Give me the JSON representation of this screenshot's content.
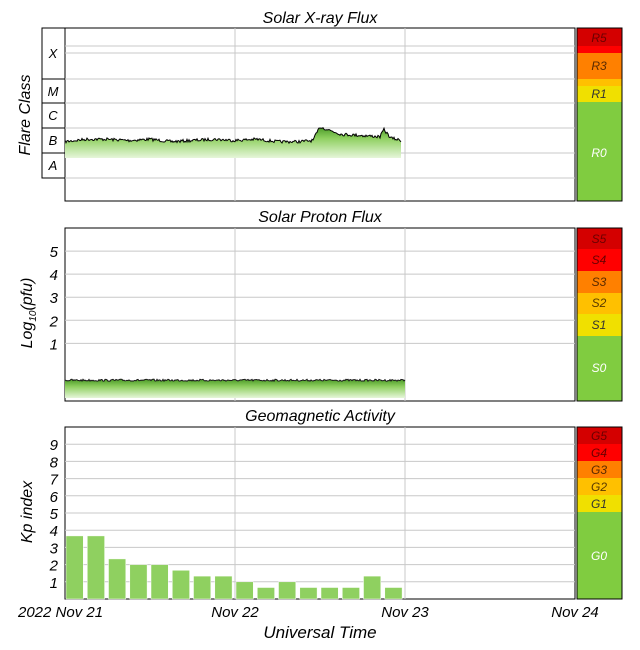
{
  "chart_data": [
    {
      "type": "area",
      "title": "Solar X-ray Flux",
      "ylabel": "Flare Class",
      "y_scale": "log",
      "ylim_log10": [
        -9,
        -2
      ],
      "flare_classes": [
        "X",
        "M",
        "C",
        "B",
        "A"
      ],
      "scale_labels": [
        "R5",
        "R3",
        "R1",
        "R0"
      ],
      "x": [
        "2022-11-21T00:00",
        "2022-11-21T03:00",
        "2022-11-21T06:00",
        "2022-11-21T09:00",
        "2022-11-21T12:00",
        "2022-11-21T15:00",
        "2022-11-21T18:00",
        "2022-11-21T21:00",
        "2022-11-22T00:00",
        "2022-11-22T03:00",
        "2022-11-22T06:00",
        "2022-11-22T09:00",
        "2022-11-22T11:00",
        "2022-11-22T12:00",
        "2022-11-22T15:00",
        "2022-11-22T18:00",
        "2022-11-22T20:30",
        "2022-11-22T21:00",
        "2022-11-22T22:00",
        "2022-11-22T23:30"
      ],
      "values_log10": [
        -6.6,
        -6.5,
        -6.5,
        -6.55,
        -6.5,
        -6.6,
        -6.55,
        -6.5,
        -6.55,
        -6.5,
        -6.6,
        -6.6,
        -6.55,
        -6.0,
        -6.3,
        -6.35,
        -6.4,
        -6.1,
        -6.45,
        -6.55
      ]
    },
    {
      "type": "area",
      "title": "Solar Proton Flux",
      "ylabel": "Log10(pfu)",
      "ylim": [
        -1.5,
        6
      ],
      "yticks": [
        1,
        2,
        3,
        4,
        5
      ],
      "scale_labels": [
        "S5",
        "S4",
        "S3",
        "S2",
        "S1",
        "S0"
      ],
      "x": [
        "2022-11-21T00:00",
        "2022-11-23T00:00"
      ],
      "values": [
        -0.6,
        -0.6
      ]
    },
    {
      "type": "bar",
      "title": "Geomagnetic Activity",
      "ylabel": "Kp index",
      "ylim": [
        0,
        10
      ],
      "yticks": [
        1,
        2,
        3,
        4,
        5,
        6,
        7,
        8,
        9
      ],
      "scale_labels": [
        "G5",
        "G4",
        "G3",
        "G2",
        "G1",
        "G0"
      ],
      "x": [
        "2022-11-21T00:00",
        "2022-11-21T03:00",
        "2022-11-21T06:00",
        "2022-11-21T09:00",
        "2022-11-21T12:00",
        "2022-11-21T15:00",
        "2022-11-21T18:00",
        "2022-11-21T21:00",
        "2022-11-22T00:00",
        "2022-11-22T03:00",
        "2022-11-22T06:00",
        "2022-11-22T09:00",
        "2022-11-22T12:00",
        "2022-11-22T15:00",
        "2022-11-22T18:00",
        "2022-11-22T21:00"
      ],
      "values": [
        3.67,
        3.67,
        2.33,
        2.0,
        2.0,
        1.67,
        1.33,
        1.33,
        1.0,
        0.67,
        1.0,
        0.67,
        0.67,
        0.67,
        1.33,
        0.67
      ]
    }
  ],
  "xaxis": {
    "ticks": [
      "2022 Nov 21",
      "Nov 22",
      "Nov 23",
      "Nov 24"
    ],
    "label": "Universal Time"
  },
  "colors": {
    "R5": "#d40000",
    "R4": "#ff0000",
    "R3": "#ff8000",
    "R2": "#ffc000",
    "R1": "#f0e000",
    "R0": "#80cc40",
    "grid": "#c8c8c8",
    "fill_dark": "#5aa832",
    "fill_light": "#d8f0c4"
  }
}
